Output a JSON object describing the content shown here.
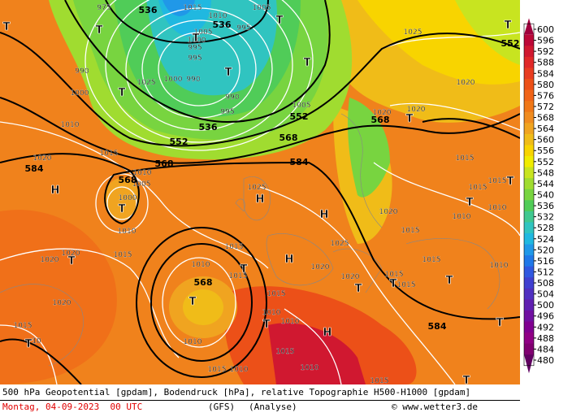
{
  "map": {
    "geopotential_labels": [
      "536",
      "536",
      "552",
      "536",
      "552",
      "552",
      "568",
      "568",
      "568",
      "584",
      "568",
      "584",
      "568",
      "584"
    ],
    "pressure_labels": [
      "975",
      "1015",
      "1010",
      "1005",
      "1005",
      "1000",
      "995",
      "995",
      "995",
      "990",
      "1000",
      "1000",
      "990",
      "1025",
      "990",
      "995",
      "1005",
      "1025",
      "1020",
      "1020",
      "1020",
      "1010",
      "1015",
      "1020",
      "1010",
      "1005",
      "1000",
      "1025",
      "1015",
      "1020",
      "1015",
      "1015",
      "1010",
      "1010",
      "1010",
      "1015",
      "1020",
      "1020",
      "1015",
      "1010",
      "1015",
      "1020",
      "1025",
      "1020",
      "1015",
      "1015",
      "1015",
      "1015",
      "1010",
      "1015",
      "1010",
      "1010",
      "1020",
      "1015",
      "10",
      "1010",
      "1015",
      "1010",
      "1015",
      "1010",
      "1015"
    ],
    "centers": [
      "T",
      "T",
      "T",
      "T",
      "T",
      "T",
      "T",
      "T",
      "T",
      "H",
      "T",
      "H",
      "H",
      "T",
      "T",
      "T",
      "H",
      "T",
      "T",
      "T",
      "H",
      "T",
      "T",
      "T",
      "T",
      "T",
      "T"
    ],
    "colorbar": {
      "labels": [
        600,
        596,
        592,
        588,
        584,
        580,
        576,
        572,
        568,
        564,
        560,
        556,
        552,
        548,
        544,
        540,
        536,
        532,
        528,
        524,
        520,
        516,
        512,
        508,
        504,
        500,
        496,
        492,
        488,
        484,
        480
      ],
      "colors": [
        "#a0003c",
        "#bc0838",
        "#d01830",
        "#e02828",
        "#e83c20",
        "#ec5018",
        "#f06418",
        "#f07818",
        "#f08c20",
        "#f0a420",
        "#f0bc18",
        "#f8d400",
        "#f0ec00",
        "#c8e420",
        "#a0dc30",
        "#78d440",
        "#50cc58",
        "#40c890",
        "#30c4c0",
        "#20b8e0",
        "#2098e8",
        "#2078e8",
        "#3058e0",
        "#4040d0",
        "#5030c0",
        "#6020b0",
        "#7010a0",
        "#800090",
        "#900084",
        "#800070",
        "#600060"
      ]
    },
    "footer": {
      "line1": "500 hPa Geopotential [gpdam], Bodendruck [hPa], relative Topographie H500-H1000 [gpdam]",
      "date": "Montag, 04-09-2023  00 UTC",
      "model": "(GFS)",
      "run": "(Analyse)",
      "credit": "© www.wetter3.de"
    }
  }
}
